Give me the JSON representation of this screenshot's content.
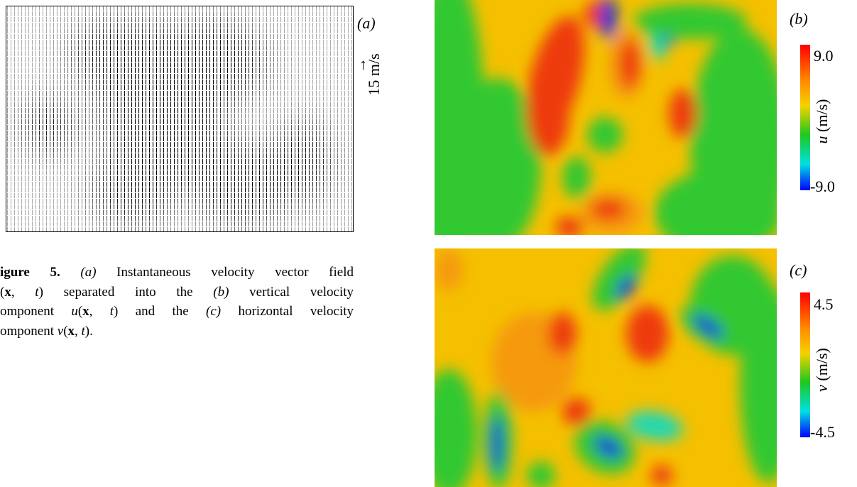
{
  "panels": {
    "a": {
      "label": "(a)",
      "scale": "15 m/s"
    },
    "b": {
      "label": "(b)",
      "colorbar": {
        "max": "9.0",
        "min": "-9.0",
        "variable": "u",
        "unit": "(m/s)"
      }
    },
    "c": {
      "label": "(c)",
      "colorbar": {
        "max": "4.5",
        "min": "-4.5",
        "variable": "v",
        "unit": "(m/s)"
      }
    }
  },
  "caption": {
    "lines": [
      [
        "igure 5.",
        "(a)",
        "Instantaneous velocity vector field"
      ],
      [
        "(",
        "x",
        ",",
        "t",
        ")",
        "separated into the",
        "(b)",
        "vertical velocity"
      ],
      [
        "omponent",
        "u",
        "(",
        "x",
        ",",
        "t",
        ")",
        "and the",
        "(c)",
        "horizontal velocity"
      ],
      [
        "omponent",
        "v",
        "(",
        "x",
        ",",
        "t",
        ")."
      ]
    ]
  }
}
